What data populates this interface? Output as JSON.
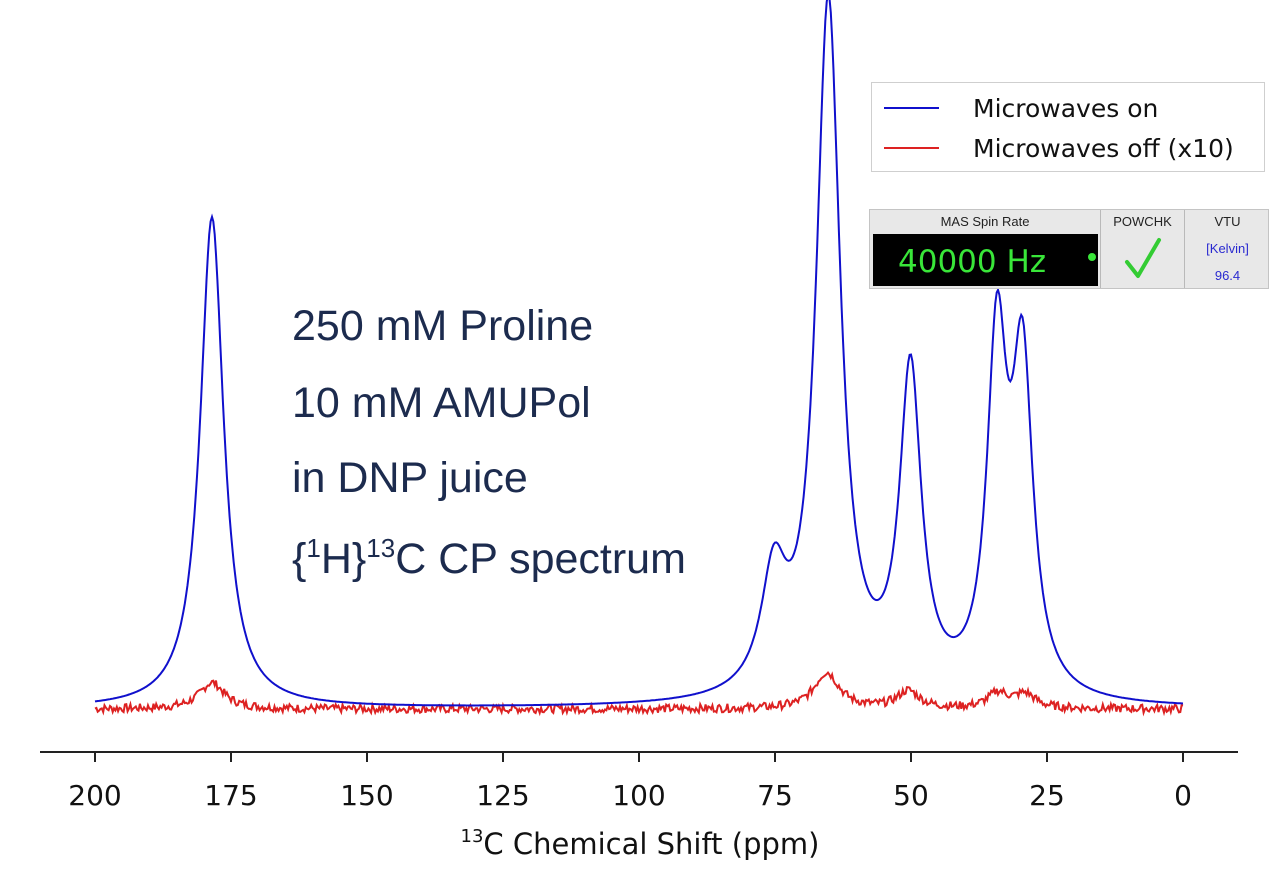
{
  "chart_data": {
    "type": "line",
    "title": "",
    "xlabel_sup": "13",
    "xlabel": "C Chemical Shift (ppm)",
    "ylabel": "",
    "xlim": [
      200,
      0
    ],
    "x_reversed": true,
    "xticks": [
      200,
      175,
      150,
      125,
      100,
      75,
      50,
      25,
      0
    ],
    "ylim": [
      -0.05,
      1.02
    ],
    "yaxis_shown": false,
    "grid": false,
    "legend_position": "top-right",
    "legend": [
      "Microwaves on",
      "Microwaves off (x10)"
    ],
    "series": [
      {
        "name": "Microwaves on",
        "color": "#1010cc",
        "peaks": [
          {
            "center": 178.5,
            "height": 0.706,
            "width": 2.6
          },
          {
            "center": 75.2,
            "height": 0.162,
            "width": 2.8
          },
          {
            "center": 65.2,
            "height": 1.0,
            "width": 2.7
          },
          {
            "center": 50.1,
            "height": 0.462,
            "width": 2.4
          },
          {
            "center": 34.2,
            "height": 0.492,
            "width": 2.2
          },
          {
            "center": 29.5,
            "height": 0.462,
            "width": 2.3
          }
        ],
        "baseline": 0.0
      },
      {
        "name": "Microwaves off (x10)",
        "color": "#dd2222",
        "peaks": [
          {
            "center": 178.5,
            "height": 0.038,
            "width": 2.8
          },
          {
            "center": 65.5,
            "height": 0.052,
            "width": 2.8
          },
          {
            "center": 50.5,
            "height": 0.025,
            "width": 2.5
          },
          {
            "center": 34.0,
            "height": 0.022,
            "width": 2.3
          },
          {
            "center": 29.0,
            "height": 0.02,
            "width": 2.3
          }
        ],
        "baseline": 0.0,
        "noise": 0.006
      }
    ]
  },
  "annotation": {
    "line1": "250 mM Proline",
    "line2": "10 mM AMUPol",
    "line3": "in DNP juice",
    "line4_pre": "{",
    "line4_sup1": "1",
    "line4_mid": "H}",
    "line4_sup2": "13",
    "line4_post": "C CP spectrum"
  },
  "status_panel": {
    "mas_header": "MAS Spin Rate",
    "mas_value": "40000 Hz",
    "powchk_header": "POWCHK",
    "powchk_icon": "checkmark-icon",
    "vtu_header": "VTU",
    "vtu_unit": "[Kelvin]",
    "vtu_value": "96.4",
    "colors": {
      "display_bg": "#000000",
      "display_text": "#39e639",
      "vtu_text": "#2a2ad0",
      "check": "#33cc33"
    }
  }
}
